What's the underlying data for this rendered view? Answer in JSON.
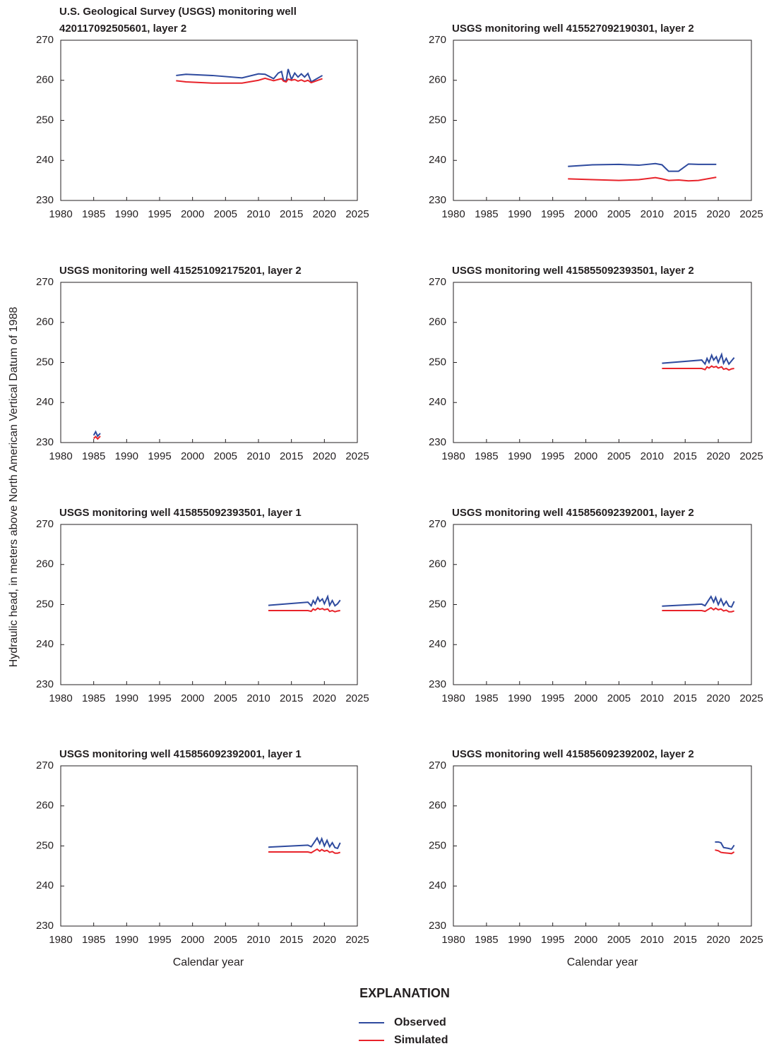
{
  "y_axis_label": "Hydraulic head, in meters above North American Vertical Datum of 1988",
  "x_axis_label": "Calendar year",
  "legend_title": "EXPLANATION",
  "chart_data": [
    {
      "type": "line",
      "title": [
        "U.S. Geological Survey (USGS) monitoring well",
        "420117092505601, layer 2"
      ],
      "x": [
        1997.5,
        1999,
        2003,
        2007.5,
        2010,
        2011,
        2012.3,
        2013,
        2013.5,
        2013.8,
        2014.2,
        2014.5,
        2015,
        2015.5,
        2016,
        2016.5,
        2017,
        2017.5,
        2018,
        2019.7
      ],
      "series": [
        {
          "name": "Observed",
          "color": "#2e4a9e",
          "values": [
            261.2,
            261.5,
            261.2,
            260.6,
            261.6,
            261.5,
            260.4,
            261.8,
            262.2,
            260.0,
            259.8,
            262.8,
            260.2,
            261.8,
            260.8,
            261.6,
            260.8,
            261.7,
            259.6,
            261.2
          ]
        },
        {
          "name": "Simulated",
          "color": "#e8232a",
          "values": [
            259.9,
            259.6,
            259.3,
            259.3,
            260.0,
            260.5,
            259.9,
            260.2,
            260.4,
            259.8,
            259.6,
            260.3,
            260.0,
            260.2,
            259.8,
            260.1,
            259.7,
            260.0,
            259.4,
            260.4
          ]
        }
      ],
      "xlim": [
        1980,
        2025
      ],
      "xticks": [
        1980,
        1985,
        1990,
        1995,
        2000,
        2005,
        2010,
        2015,
        2020,
        2025
      ],
      "ylim": [
        230,
        270
      ],
      "yticks": [
        230,
        240,
        250,
        260,
        270
      ]
    },
    {
      "type": "line",
      "title": "USGS monitoring well 415527092190301, layer 2",
      "x": [
        1997.3,
        2001,
        2005,
        2008,
        2010.5,
        2011.5,
        2012.5,
        2014,
        2015.5,
        2017,
        2019.7
      ],
      "series": [
        {
          "name": "Observed",
          "color": "#2e4a9e",
          "values": [
            238.5,
            238.9,
            239.0,
            238.8,
            239.2,
            238.9,
            237.3,
            237.3,
            239.1,
            239.0,
            239.0
          ]
        },
        {
          "name": "Simulated",
          "color": "#e8232a",
          "values": [
            235.4,
            235.2,
            235.0,
            235.2,
            235.7,
            235.4,
            235.0,
            235.1,
            234.9,
            235.0,
            235.8
          ]
        }
      ],
      "xlim": [
        1980,
        2025
      ],
      "xticks": [
        1980,
        1985,
        1990,
        1995,
        2000,
        2005,
        2010,
        2015,
        2020,
        2025
      ],
      "ylim": [
        230,
        270
      ],
      "yticks": [
        230,
        240,
        250,
        260,
        270
      ]
    },
    {
      "type": "line",
      "title": "USGS monitoring well 415251092175201, layer 2",
      "x": [
        1985.0,
        1985.3,
        1985.6,
        1986.0
      ],
      "series": [
        {
          "name": "Observed",
          "color": "#2e4a9e",
          "values": [
            231.8,
            232.7,
            231.6,
            232.3
          ]
        },
        {
          "name": "Simulated",
          "color": "#e8232a",
          "values": [
            231.0,
            231.5,
            230.9,
            231.6
          ]
        }
      ],
      "xlim": [
        1980,
        2025
      ],
      "xticks": [
        1980,
        1985,
        1990,
        1995,
        2000,
        2005,
        2010,
        2015,
        2020,
        2025
      ],
      "ylim": [
        230,
        270
      ],
      "yticks": [
        230,
        240,
        250,
        260,
        270
      ]
    },
    {
      "type": "line",
      "title": "USGS monitoring well 415855092393501, layer 2",
      "x": [
        2011.5,
        2017.5,
        2018,
        2018.3,
        2018.6,
        2019,
        2019.3,
        2019.7,
        2020,
        2020.5,
        2020.8,
        2021.2,
        2021.6,
        2022,
        2022.4
      ],
      "series": [
        {
          "name": "Observed",
          "color": "#2e4a9e",
          "values": [
            249.8,
            250.6,
            249.6,
            251.0,
            250.0,
            251.8,
            250.6,
            251.4,
            250.0,
            252.0,
            249.8,
            251.0,
            249.6,
            250.4,
            251.2
          ]
        },
        {
          "name": "Simulated",
          "color": "#e8232a",
          "values": [
            248.5,
            248.5,
            248.2,
            248.9,
            248.6,
            249.1,
            248.8,
            249.0,
            248.6,
            248.9,
            248.3,
            248.5,
            248.1,
            248.4,
            248.5
          ]
        }
      ],
      "xlim": [
        1980,
        2025
      ],
      "xticks": [
        1980,
        1985,
        1990,
        1995,
        2000,
        2005,
        2010,
        2015,
        2020,
        2025
      ],
      "ylim": [
        230,
        270
      ],
      "yticks": [
        230,
        240,
        250,
        260,
        270
      ]
    },
    {
      "type": "line",
      "title": "USGS monitoring well 415855092393501, layer 1",
      "x": [
        2011.5,
        2017.5,
        2018,
        2018.3,
        2018.6,
        2019,
        2019.3,
        2019.7,
        2020,
        2020.5,
        2020.8,
        2021.2,
        2021.6,
        2022,
        2022.4
      ],
      "series": [
        {
          "name": "Observed",
          "color": "#2e4a9e",
          "values": [
            249.8,
            250.6,
            249.7,
            251.0,
            250.2,
            251.8,
            250.8,
            251.4,
            250.2,
            252.0,
            249.8,
            251.0,
            249.7,
            250.2,
            251.1
          ]
        },
        {
          "name": "Simulated",
          "color": "#e8232a",
          "values": [
            248.5,
            248.5,
            248.3,
            248.9,
            248.6,
            249.1,
            248.8,
            249.0,
            248.7,
            248.9,
            248.3,
            248.5,
            248.2,
            248.4,
            248.5
          ]
        }
      ],
      "xlim": [
        1980,
        2025
      ],
      "xticks": [
        1980,
        1985,
        1990,
        1995,
        2000,
        2005,
        2010,
        2015,
        2020,
        2025
      ],
      "ylim": [
        230,
        270
      ],
      "yticks": [
        230,
        240,
        250,
        260,
        270
      ]
    },
    {
      "type": "line",
      "title": "USGS monitoring well 415856092392001, layer 2",
      "x": [
        2011.5,
        2017.5,
        2018,
        2018.5,
        2018.9,
        2019.3,
        2019.6,
        2020,
        2020.4,
        2020.8,
        2021.2,
        2021.6,
        2022,
        2022.4
      ],
      "series": [
        {
          "name": "Observed",
          "color": "#2e4a9e",
          "values": [
            249.6,
            250.1,
            249.7,
            251.0,
            252.0,
            250.6,
            251.8,
            250.0,
            251.4,
            249.8,
            250.8,
            249.6,
            249.4,
            250.8
          ]
        },
        {
          "name": "Simulated",
          "color": "#e8232a",
          "values": [
            248.5,
            248.5,
            248.3,
            248.8,
            249.2,
            248.7,
            249.1,
            248.7,
            248.9,
            248.4,
            248.6,
            248.2,
            248.2,
            248.4
          ]
        }
      ],
      "xlim": [
        1980,
        2025
      ],
      "xticks": [
        1980,
        1985,
        1990,
        1995,
        2000,
        2005,
        2010,
        2015,
        2020,
        2025
      ],
      "ylim": [
        230,
        270
      ],
      "yticks": [
        230,
        240,
        250,
        260,
        270
      ]
    },
    {
      "type": "line",
      "title": "USGS monitoring well 415856092392001, layer 1",
      "x": [
        2011.5,
        2017.5,
        2018,
        2018.5,
        2018.9,
        2019.3,
        2019.6,
        2020,
        2020.4,
        2020.8,
        2021.2,
        2021.6,
        2022,
        2022.4
      ],
      "series": [
        {
          "name": "Observed",
          "color": "#2e4a9e",
          "values": [
            249.7,
            250.2,
            249.8,
            251.0,
            252.0,
            250.6,
            251.8,
            250.0,
            251.4,
            249.8,
            250.8,
            249.6,
            249.4,
            250.8
          ]
        },
        {
          "name": "Simulated",
          "color": "#e8232a",
          "values": [
            248.5,
            248.5,
            248.3,
            248.8,
            249.2,
            248.7,
            249.1,
            248.7,
            248.9,
            248.4,
            248.6,
            248.2,
            248.2,
            248.4
          ]
        }
      ],
      "xlim": [
        1980,
        2025
      ],
      "xticks": [
        1980,
        1985,
        1990,
        1995,
        2000,
        2005,
        2010,
        2015,
        2020,
        2025
      ],
      "ylim": [
        230,
        270
      ],
      "yticks": [
        230,
        240,
        250,
        260,
        270
      ]
    },
    {
      "type": "line",
      "title": "USGS monitoring well 415856092392002, layer 2",
      "x": [
        2019.5,
        2020,
        2020.4,
        2020.8,
        2021.5,
        2022,
        2022.4
      ],
      "series": [
        {
          "name": "Observed",
          "color": "#2e4a9e",
          "values": [
            251.0,
            251.0,
            250.8,
            249.6,
            249.4,
            249.2,
            250.2
          ]
        },
        {
          "name": "Simulated",
          "color": "#e8232a",
          "values": [
            249.0,
            248.8,
            248.4,
            248.3,
            248.2,
            248.1,
            248.5
          ]
        }
      ],
      "xlim": [
        1980,
        2025
      ],
      "xticks": [
        1980,
        1985,
        1990,
        1995,
        2000,
        2005,
        2010,
        2015,
        2020,
        2025
      ],
      "ylim": [
        230,
        270
      ],
      "yticks": [
        230,
        240,
        250,
        260,
        270
      ]
    }
  ]
}
